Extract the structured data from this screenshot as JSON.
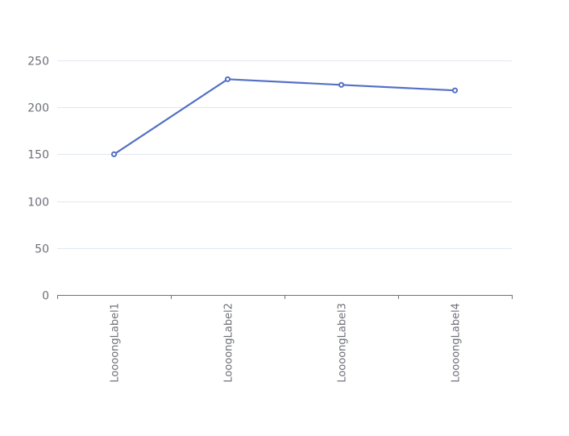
{
  "chart_data": {
    "type": "line",
    "title": "",
    "xlabel": "",
    "ylabel": "",
    "categories": [
      "LoooongLabel1",
      "LoooongLabel2",
      "LoooongLabel3",
      "LoooongLabel4"
    ],
    "series": [
      {
        "values": [
          150,
          230,
          224,
          218
        ],
        "color": "#5470c6"
      }
    ],
    "ylim": [
      0,
      250
    ],
    "yticks": [
      0,
      50,
      100,
      150,
      200,
      250
    ],
    "grid": true,
    "legend": "none"
  },
  "colors": {
    "series": "#5470c6",
    "grid": "#e0e6f1",
    "axis": "#6e7079",
    "text": "#6e7079"
  }
}
